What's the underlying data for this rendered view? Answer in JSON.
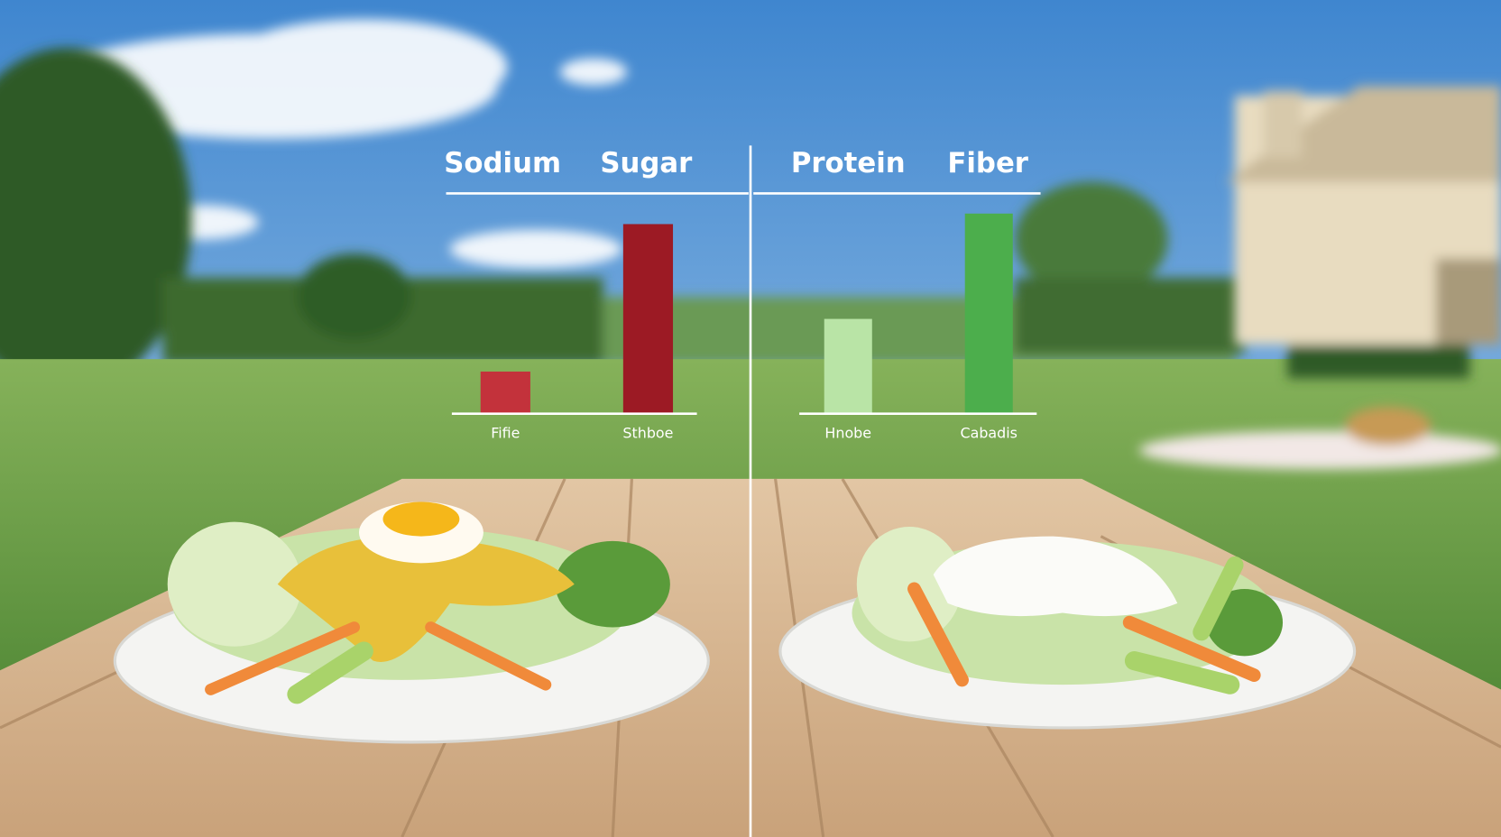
{
  "chart_data": [
    {
      "type": "bar",
      "headers": [
        "Sodium",
        "Sugar"
      ],
      "categories": [
        "Fifie",
        "Sthboe"
      ],
      "values": [
        20,
        90
      ],
      "colors": [
        "#c3323b",
        "#9c1a24"
      ],
      "ylim": [
        0,
        100
      ]
    },
    {
      "type": "bar",
      "headers": [
        "Protein",
        "Fiber"
      ],
      "categories": [
        "Hnobe",
        "Cabadis"
      ],
      "values": [
        45,
        95
      ],
      "colors": [
        "#b9e4a6",
        "#4cae4c"
      ],
      "ylim": [
        0,
        100
      ]
    }
  ]
}
